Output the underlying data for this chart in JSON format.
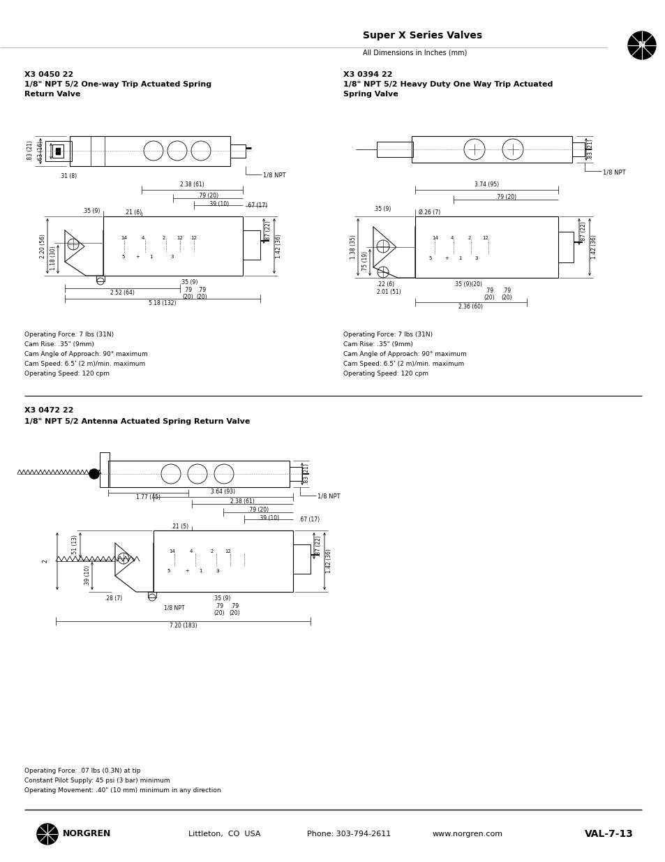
{
  "title": "Super X Series Valves",
  "subtitle": "All Dimensions in Inches (mm)",
  "background_color": "#ffffff",
  "text_color": "#000000",
  "s1_pn": "X3 0450 22",
  "s1_desc1": "1/8\" NPT 5/2 One-way Trip Actuated Spring",
  "s1_desc2": "Return Valve",
  "s2_pn": "X3 0394 22",
  "s2_desc1": "1/8\" NPT 5/2 Heavy Duty One Way Trip Actuated",
  "s2_desc2": "Spring Valve",
  "s3_pn": "X3 0472 22",
  "s3_desc1": "1/8\" NPT 5/2 Antenna Actuated Spring Return Valve",
  "specs1": [
    "Operating Force: 7 lbs (31N)",
    "Cam Rise: .35\" (9mm)",
    "Cam Angle of Approach: 90° maximum",
    "Cam Speed: 6.5’ (2 m)/min. maximum",
    "Operating Speed: 120 cpm"
  ],
  "specs2": [
    "Operating Force: 7 lbs (31N)",
    "Cam Rise: .35\" (9mm)",
    "Cam Angle of Approach: 90° maximum",
    "Cam Speed: 6.5’ (2 m)/min. maximum",
    "Operating Speed: 120 cpm"
  ],
  "specs3": [
    "Operating Force: .07 lbs (0.3N) at tip",
    "Constant Pilot Supply: 45 psi (3 bar) minimum",
    "Operating Movement: .40\" (10 mm) minimum in any direction"
  ],
  "footer_location": "Littleton,  CO  USA",
  "footer_phone": "Phone: 303-794-2611",
  "footer_website": "www.norgren.com",
  "footer_page": "VAL-7-13"
}
